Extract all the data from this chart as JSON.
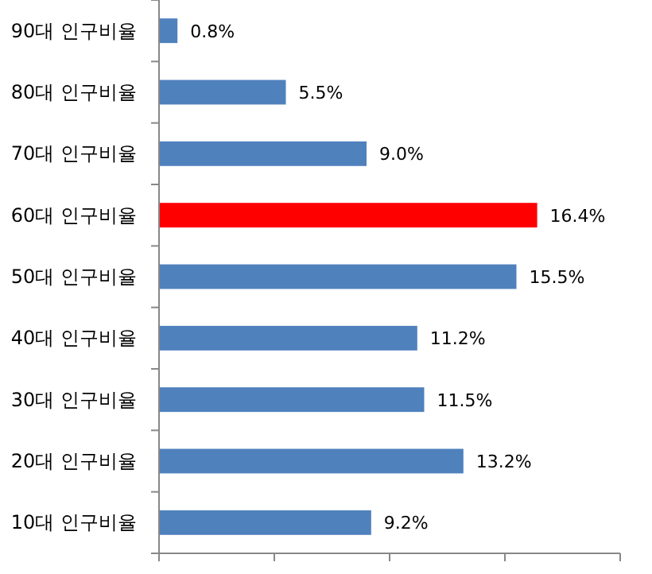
{
  "chart_data": {
    "type": "bar",
    "orientation": "horizontal",
    "categories": [
      "90대 인구비율",
      "80대 인구비율",
      "70대 인구비율",
      "60대 인구비율",
      "50대 인구비율",
      "40대 인구비율",
      "30대 인구비율",
      "20대 인구비율",
      "10대 인구비율"
    ],
    "values": [
      0.8,
      5.5,
      9.0,
      16.4,
      15.5,
      11.2,
      11.5,
      13.2,
      9.2
    ],
    "colors": [
      "#4f81bd",
      "#4f81bd",
      "#4f81bd",
      "#ff0000",
      "#4f81bd",
      "#4f81bd",
      "#4f81bd",
      "#4f81bd",
      "#4f81bd"
    ],
    "value_labels": [
      "0.8%",
      "5.5%",
      "9.0%",
      "16.4%",
      "15.5%",
      "11.2%",
      "11.5%",
      "13.2%",
      "9.2%"
    ],
    "xlim": [
      0,
      20
    ],
    "xticks": [
      {
        "value": 0,
        "label": null
      },
      {
        "value": 5,
        "label": null
      },
      {
        "value": 10,
        "label": null
      },
      {
        "value": 15,
        "label": null
      },
      {
        "value": 20,
        "label": null
      }
    ],
    "tick_labels": "y"
  }
}
